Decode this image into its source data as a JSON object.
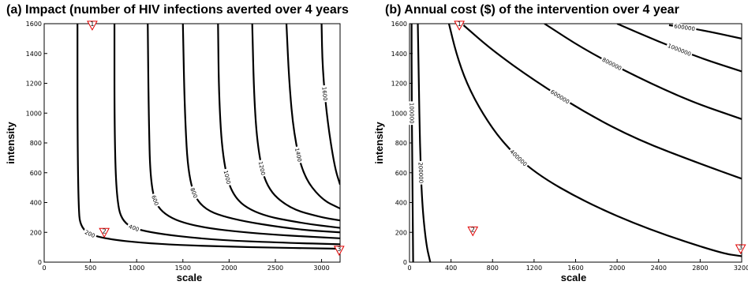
{
  "chart_data": [
    {
      "type": "contour",
      "title": "(a) Impact (number of HIV infections averted over 4 years",
      "xlabel": "scale",
      "ylabel": "intensity",
      "xlim": [
        0,
        3200
      ],
      "ylim": [
        0,
        1600
      ],
      "xticks": [
        0,
        500,
        1000,
        1500,
        2000,
        2500,
        3000
      ],
      "yticks": [
        0,
        200,
        400,
        600,
        800,
        1000,
        1200,
        1400,
        1600
      ],
      "contours": [
        {
          "label": "200",
          "points": [
            [
              360,
              1600
            ],
            [
              360,
              900
            ],
            [
              370,
              400
            ],
            [
              390,
              220
            ],
            [
              600,
              160
            ],
            [
              1200,
              120
            ],
            [
              2200,
              100
            ],
            [
              3200,
              90
            ]
          ]
        },
        {
          "label": "400",
          "points": [
            [
              760,
              1600
            ],
            [
              760,
              900
            ],
            [
              780,
              450
            ],
            [
              840,
              260
            ],
            [
              1100,
              200
            ],
            [
              1800,
              150
            ],
            [
              2600,
              130
            ],
            [
              3200,
              120
            ]
          ]
        },
        {
          "label": "600",
          "points": [
            [
              1120,
              1600
            ],
            [
              1130,
              1000
            ],
            [
              1150,
              500
            ],
            [
              1250,
              330
            ],
            [
              1600,
              240
            ],
            [
              2300,
              190
            ],
            [
              3200,
              160
            ]
          ]
        },
        {
          "label": "800",
          "points": [
            [
              1500,
              1600
            ],
            [
              1520,
              1000
            ],
            [
              1560,
              560
            ],
            [
              1680,
              370
            ],
            [
              2000,
              290
            ],
            [
              2700,
              220
            ],
            [
              3200,
              200
            ]
          ]
        },
        {
          "label": "1000",
          "points": [
            [
              1880,
              1600
            ],
            [
              1890,
              1100
            ],
            [
              1930,
              700
            ],
            [
              2030,
              440
            ],
            [
              2300,
              320
            ],
            [
              2800,
              260
            ],
            [
              3200,
              230
            ]
          ]
        },
        {
          "label": "1200",
          "points": [
            [
              2250,
              1600
            ],
            [
              2270,
              1100
            ],
            [
              2310,
              760
            ],
            [
              2400,
              500
            ],
            [
              2650,
              360
            ],
            [
              3000,
              300
            ],
            [
              3200,
              280
            ]
          ]
        },
        {
          "label": "1400",
          "points": [
            [
              2620,
              1600
            ],
            [
              2650,
              1200
            ],
            [
              2700,
              860
            ],
            [
              2800,
              580
            ],
            [
              3000,
              420
            ],
            [
              3200,
              360
            ]
          ]
        },
        {
          "label": "1600",
          "points": [
            [
              3000,
              1600
            ],
            [
              3010,
              1300
            ],
            [
              3060,
              960
            ],
            [
              3140,
              640
            ],
            [
              3200,
              520
            ]
          ]
        }
      ],
      "markers": [
        {
          "label": "1",
          "x": 520,
          "y": 1590
        },
        {
          "label": "2",
          "x": 650,
          "y": 200
        },
        {
          "label": "3",
          "x": 3190,
          "y": 80
        }
      ]
    },
    {
      "type": "contour",
      "title": "(b) Annual cost ($) of the intervention over 4 year",
      "xlabel": "scale",
      "ylabel": "intensity",
      "xlim": [
        0,
        3200
      ],
      "ylim": [
        0,
        1600
      ],
      "xticks": [
        0,
        400,
        800,
        1200,
        1600,
        2000,
        2400,
        2800,
        3200
      ],
      "yticks": [
        0,
        200,
        400,
        600,
        800,
        1000,
        1200,
        1400,
        1600
      ],
      "contours": [
        {
          "label": "100000",
          "points": [
            [
              20,
              1600
            ],
            [
              20,
              1200
            ],
            [
              25,
              800
            ],
            [
              30,
              400
            ],
            [
              35,
              0
            ]
          ]
        },
        {
          "label": "200000",
          "points": [
            [
              80,
              1600
            ],
            [
              90,
              1200
            ],
            [
              100,
              800
            ],
            [
              120,
              400
            ],
            [
              160,
              120
            ],
            [
              200,
              0
            ]
          ]
        },
        {
          "label": "400000",
          "points": [
            [
              380,
              1600
            ],
            [
              450,
              1400
            ],
            [
              550,
              1200
            ],
            [
              700,
              1000
            ],
            [
              900,
              800
            ],
            [
              1200,
              600
            ],
            [
              1700,
              400
            ],
            [
              2300,
              220
            ],
            [
              3000,
              60
            ],
            [
              3200,
              40
            ]
          ]
        },
        {
          "label": "600000",
          "points": [
            [
              520,
              1590
            ],
            [
              800,
              1420
            ],
            [
              1200,
              1220
            ],
            [
              1700,
              1000
            ],
            [
              2200,
              820
            ],
            [
              2800,
              660
            ],
            [
              3200,
              560
            ]
          ]
        },
        {
          "label": "800000",
          "points": [
            [
              1300,
              1600
            ],
            [
              1700,
              1420
            ],
            [
              2200,
              1240
            ],
            [
              2700,
              1080
            ],
            [
              3200,
              960
            ]
          ]
        },
        {
          "label": "1000000",
          "points": [
            [
              2000,
              1600
            ],
            [
              2400,
              1480
            ],
            [
              2800,
              1370
            ],
            [
              3200,
              1280
            ]
          ]
        },
        {
          "label": "600000",
          "points": [
            [
              2500,
              1590
            ],
            [
              2800,
              1560
            ],
            [
              3200,
              1500
            ]
          ]
        }
      ],
      "markers": [
        {
          "label": "1",
          "x": 480,
          "y": 1590
        },
        {
          "label": "2",
          "x": 610,
          "y": 210
        },
        {
          "label": "3",
          "x": 3190,
          "y": 90
        }
      ]
    }
  ]
}
